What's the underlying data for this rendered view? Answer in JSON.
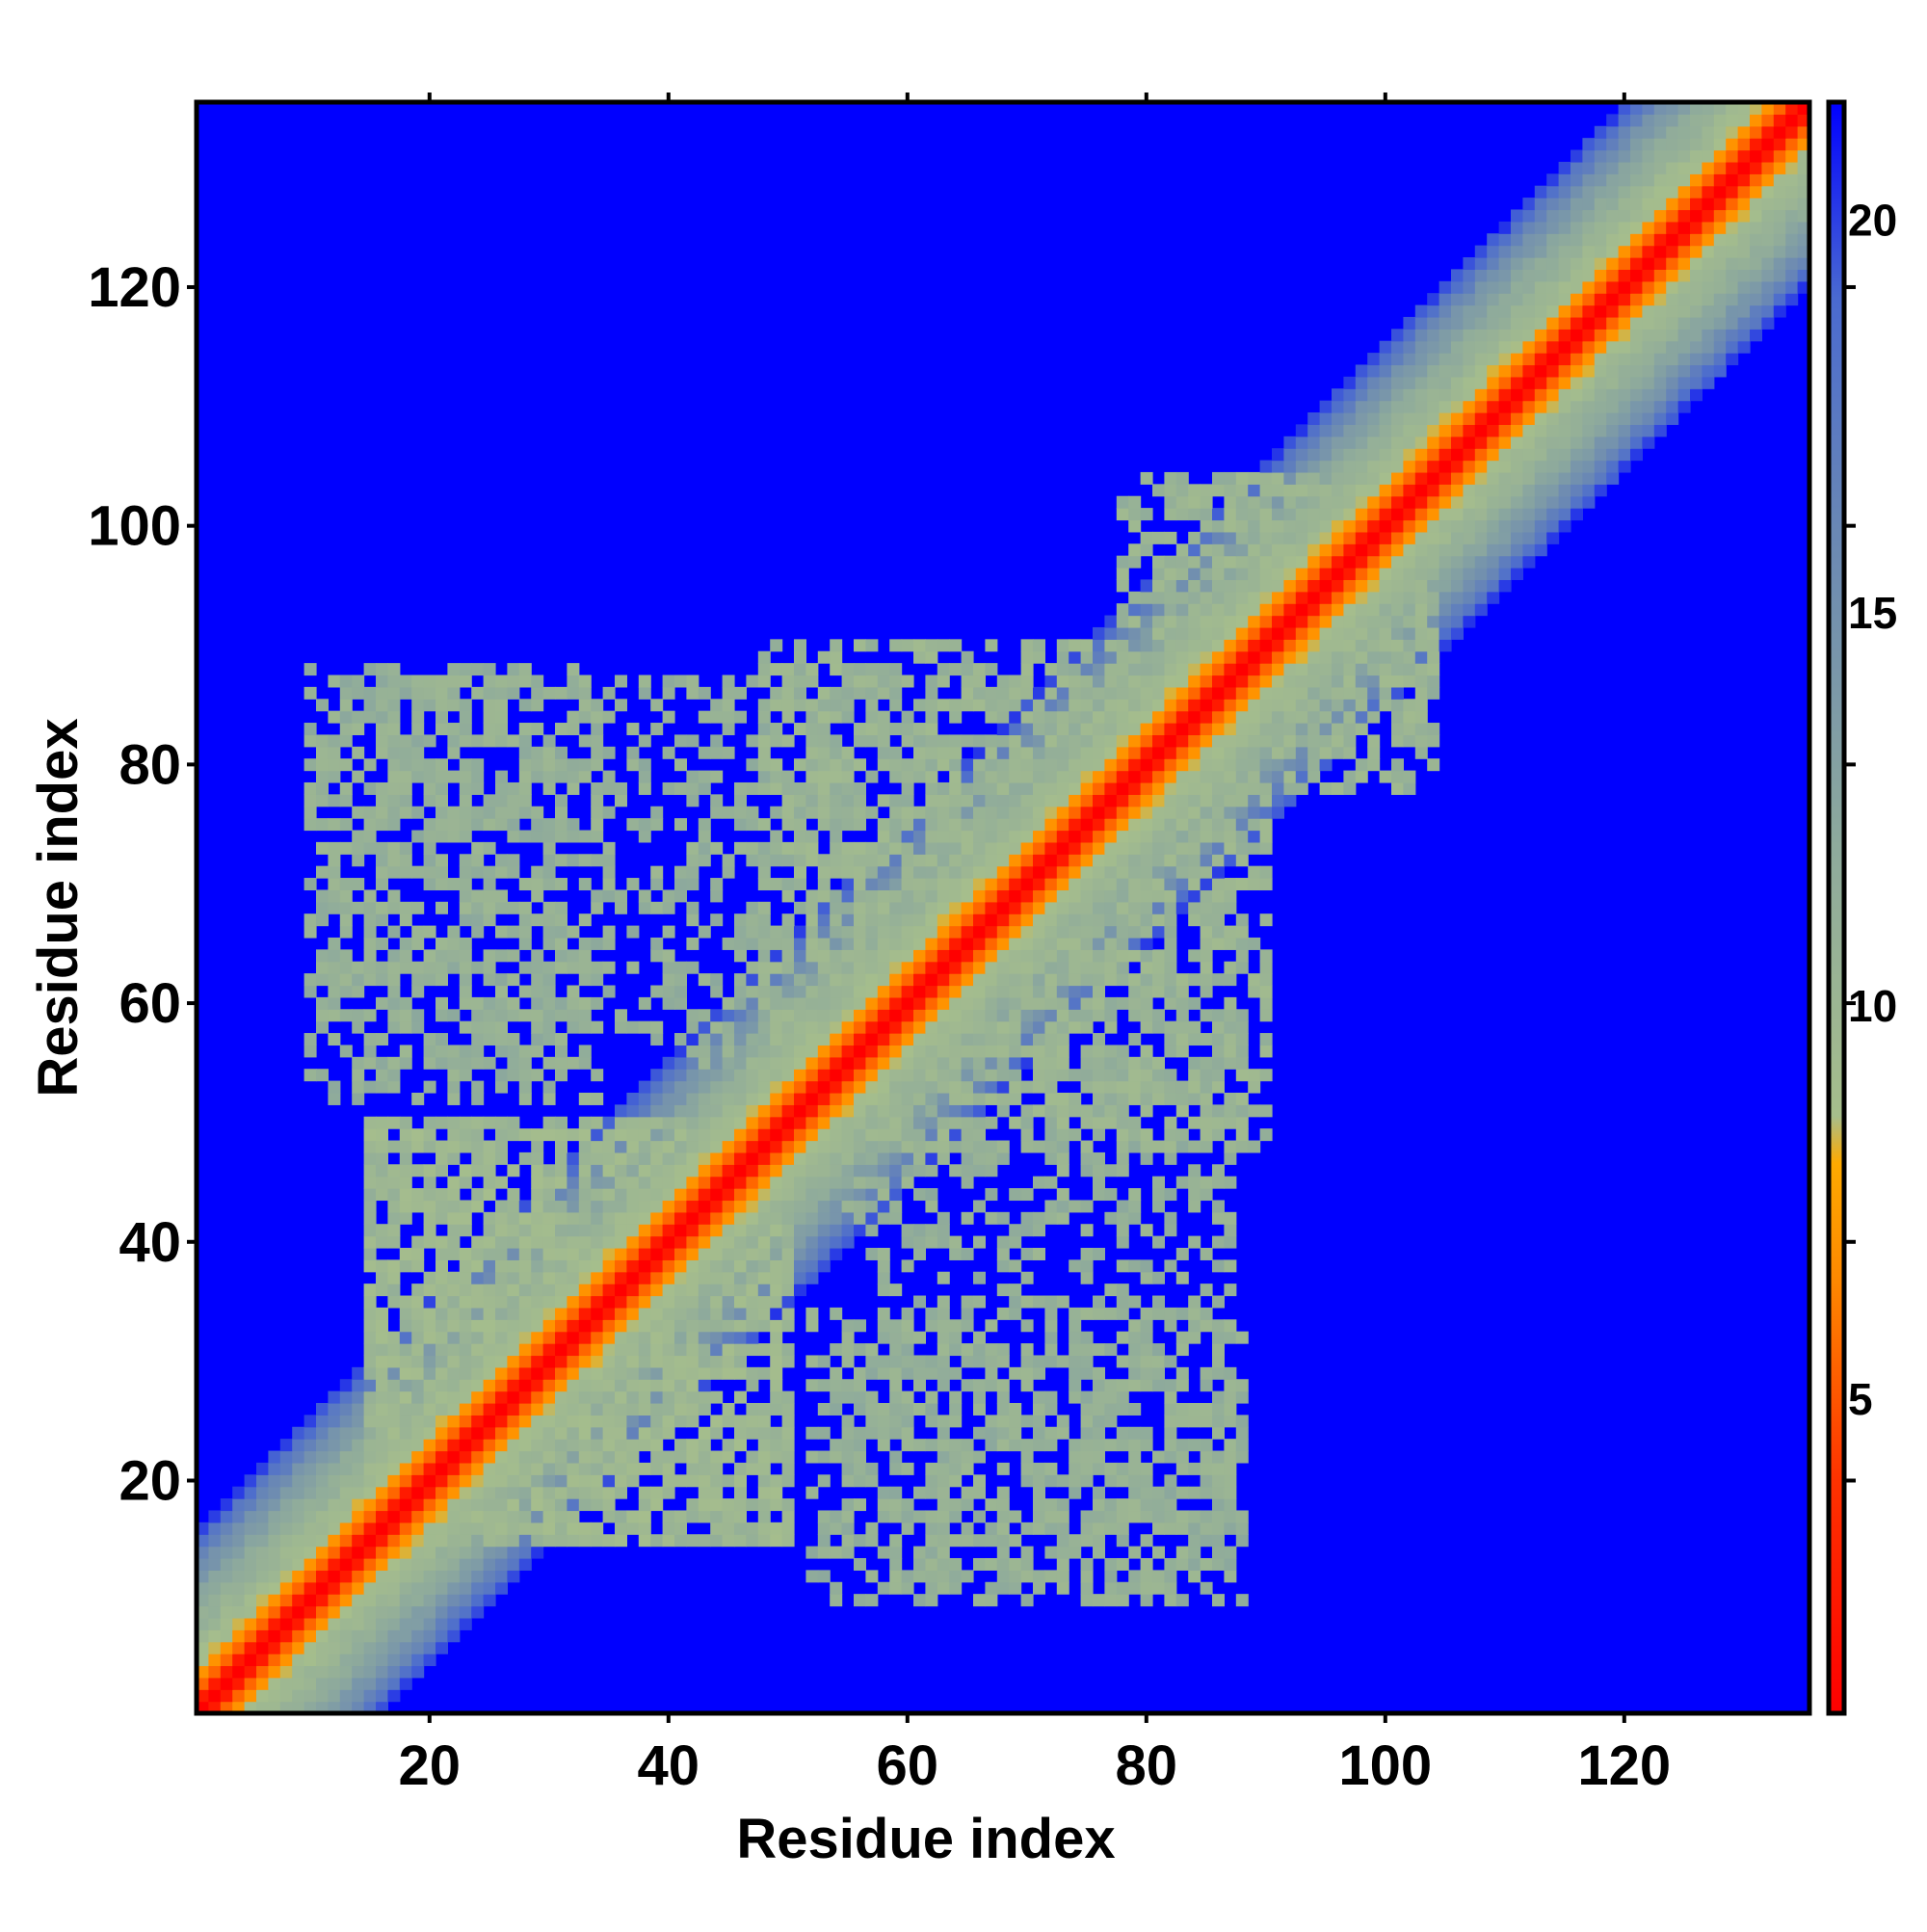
{
  "chart_data": {
    "type": "heatmap",
    "title": "",
    "xlabel": "Residue index",
    "ylabel": "Residue index",
    "n_residues": 135,
    "xlim": [
      0.5,
      135.5
    ],
    "ylim": [
      0.5,
      135.5
    ],
    "x_ticks": [
      20,
      40,
      60,
      80,
      100,
      120
    ],
    "y_ticks": [
      20,
      40,
      60,
      80,
      100,
      120
    ],
    "x_tick_labels": [
      "20",
      "40",
      "60",
      "80",
      "100",
      "120"
    ],
    "y_tick_labels": [
      "20",
      "40",
      "60",
      "80",
      "100",
      "120"
    ],
    "value_description": "pairwise residue distance",
    "symmetric": true,
    "colorbar": {
      "range": [
        1,
        21.5
      ],
      "ticks": [
        5,
        10,
        15,
        20
      ],
      "tick_labels": [
        "5",
        "10",
        "15",
        "20"
      ],
      "placement": "right"
    },
    "colorscale": [
      {
        "value": 1.0,
        "color": "#ff0000"
      },
      {
        "value": 4.0,
        "color": "#ff3300"
      },
      {
        "value": 6.5,
        "color": "#ff8800"
      },
      {
        "value": 8.0,
        "color": "#ffaa00"
      },
      {
        "value": 8.6,
        "color": "#a6be8c"
      },
      {
        "value": 12.0,
        "color": "#8eaa9c"
      },
      {
        "value": 16.0,
        "color": "#6a88b4"
      },
      {
        "value": 19.0,
        "color": "#4a6ad0"
      },
      {
        "value": 21.5,
        "color": "#0000ff"
      }
    ],
    "background_value": 21.5,
    "diagonal_band": {
      "near_distance_profile": [
        {
          "offset": 0,
          "value": 1.0
        },
        {
          "offset": 1,
          "value": 2.5
        },
        {
          "offset": 2,
          "value": 5.5
        },
        {
          "offset": 3,
          "value": 7.0
        },
        {
          "offset": 4,
          "value": 8.8
        },
        {
          "offset": 6,
          "value": 10.0
        },
        {
          "offset": 9,
          "value": 12.0
        },
        {
          "offset": 12,
          "value": 15.0
        },
        {
          "offset": 14,
          "value": 18.0
        },
        {
          "offset": 16,
          "value": 21.5
        }
      ]
    },
    "contact_regions": [
      {
        "rows": [
          55,
          87
        ],
        "cols": [
          12,
          48
        ],
        "value": 11.0,
        "density": 0.42
      },
      {
        "rows": [
          10,
          34
        ],
        "cols": [
          52,
          88
        ],
        "value": 11.0,
        "density": 0.42
      },
      {
        "rows": [
          48,
          88
        ],
        "cols": [
          48,
          90
        ],
        "value": 10.5,
        "density": 0.45
      },
      {
        "rows": [
          78,
          104
        ],
        "cols": [
          82,
          104
        ],
        "value": 10.5,
        "density": 0.5
      },
      {
        "rows": [
          15,
          50
        ],
        "cols": [
          15,
          50
        ],
        "value": 10.0,
        "density": 0.5
      }
    ]
  }
}
